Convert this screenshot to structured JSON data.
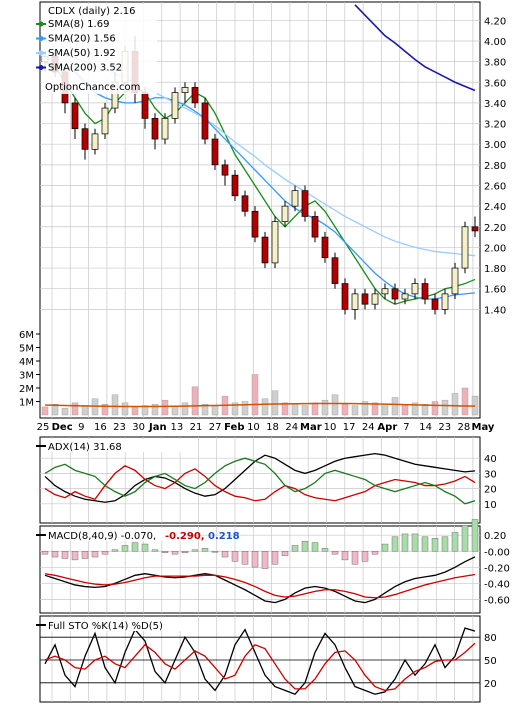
{
  "chart_data": [
    {
      "type": "candlestick",
      "title": "CDLX (daily) 2.16",
      "watermark": "OptionChance.com",
      "ylim": [
        1.2,
        4.3
      ],
      "yticks": [
        "4.20",
        "4.00",
        "3.80",
        "3.60",
        "3.40",
        "3.20",
        "3.00",
        "2.80",
        "2.60",
        "2.40",
        "2.20",
        "2.00",
        "1.80",
        "1.60",
        "1.40"
      ],
      "x_labels": [
        "25",
        "Dec",
        "9",
        "16",
        "23",
        "30",
        "Jan",
        "13",
        "21",
        "27",
        "Feb",
        "10",
        "18",
        "24",
        "Mar",
        "10",
        "17",
        "24",
        "Apr",
        "7",
        "14",
        "23",
        "28",
        "May"
      ],
      "legend": [
        {
          "label": "SMA(8) 1.69",
          "color": "#1a8c1a"
        },
        {
          "label": "SMA(20) 1.56",
          "color": "#3399ff"
        },
        {
          "label": "SMA(50) 1.92",
          "color": "#99ccff"
        },
        {
          "label": "SMA(200) 3.52",
          "color": "#1a1aa8"
        }
      ],
      "series": [
        {
          "name": "SMA(8)",
          "color": "#1a8c1a",
          "values": [
            3.8,
            3.75,
            3.6,
            3.45,
            3.3,
            3.2,
            3.25,
            3.4,
            3.5,
            3.55,
            3.5,
            3.35,
            3.25,
            3.3,
            3.4,
            3.5,
            3.45,
            3.3,
            3.1,
            2.9,
            2.75,
            2.6,
            2.45,
            2.3,
            2.2,
            2.3,
            2.4,
            2.45,
            2.35,
            2.2,
            2.05,
            1.9,
            1.75,
            1.6,
            1.5,
            1.45,
            1.48,
            1.5,
            1.52,
            1.55,
            1.6,
            1.62,
            1.65,
            1.69
          ]
        },
        {
          "name": "SMA(20)",
          "color": "#3399ff",
          "values": [
            3.85,
            3.8,
            3.75,
            3.7,
            3.6,
            3.5,
            3.45,
            3.42,
            3.4,
            3.4,
            3.42,
            3.45,
            3.45,
            3.42,
            3.38,
            3.32,
            3.25,
            3.15,
            3.05,
            2.95,
            2.85,
            2.75,
            2.65,
            2.55,
            2.45,
            2.38,
            2.32,
            2.28,
            2.22,
            2.15,
            2.05,
            1.95,
            1.85,
            1.75,
            1.67,
            1.6,
            1.55,
            1.52,
            1.5,
            1.5,
            1.52,
            1.54,
            1.55,
            1.56
          ]
        },
        {
          "name": "SMA(50)",
          "color": "#99ccff",
          "values": [
            3.9,
            3.88,
            3.86,
            3.84,
            3.8,
            3.76,
            3.72,
            3.68,
            3.64,
            3.6,
            3.55,
            3.5,
            3.45,
            3.4,
            3.35,
            3.3,
            3.25,
            3.18,
            3.1,
            3.02,
            2.95,
            2.88,
            2.8,
            2.73,
            2.66,
            2.6,
            2.54,
            2.48,
            2.42,
            2.36,
            2.3,
            2.25,
            2.2,
            2.15,
            2.1,
            2.06,
            2.03,
            2.0,
            1.98,
            1.96,
            1.95,
            1.94,
            1.93,
            1.92
          ]
        },
        {
          "name": "SMA(200)",
          "color": "#1a1aa8",
          "values": [
            null,
            null,
            null,
            null,
            null,
            null,
            null,
            null,
            null,
            null,
            null,
            null,
            null,
            null,
            null,
            null,
            null,
            null,
            null,
            null,
            null,
            null,
            null,
            null,
            null,
            null,
            null,
            null,
            null,
            null,
            null,
            4.35,
            4.25,
            4.15,
            4.05,
            3.98,
            3.9,
            3.82,
            3.75,
            3.7,
            3.65,
            3.6,
            3.56,
            3.52
          ]
        }
      ],
      "candles": [
        {
          "o": 3.8,
          "h": 3.9,
          "l": 3.7,
          "c": 3.85
        },
        {
          "o": 3.85,
          "h": 3.92,
          "l": 3.65,
          "c": 3.7
        },
        {
          "o": 3.7,
          "h": 3.75,
          "l": 3.3,
          "c": 3.4
        },
        {
          "o": 3.4,
          "h": 3.45,
          "l": 3.05,
          "c": 3.15
        },
        {
          "o": 3.15,
          "h": 3.2,
          "l": 2.85,
          "c": 2.95
        },
        {
          "o": 2.95,
          "h": 3.15,
          "l": 2.9,
          "c": 3.1
        },
        {
          "o": 3.1,
          "h": 3.4,
          "l": 3.05,
          "c": 3.35
        },
        {
          "o": 3.35,
          "h": 3.7,
          "l": 3.3,
          "c": 3.6
        },
        {
          "o": 3.6,
          "h": 3.95,
          "l": 3.5,
          "c": 3.9
        },
        {
          "o": 3.9,
          "h": 4.05,
          "l": 3.4,
          "c": 3.5
        },
        {
          "o": 3.5,
          "h": 3.55,
          "l": 3.15,
          "c": 3.25
        },
        {
          "o": 3.25,
          "h": 3.3,
          "l": 2.95,
          "c": 3.05
        },
        {
          "o": 3.05,
          "h": 3.3,
          "l": 3.0,
          "c": 3.25
        },
        {
          "o": 3.25,
          "h": 3.55,
          "l": 3.2,
          "c": 3.5
        },
        {
          "o": 3.5,
          "h": 3.6,
          "l": 3.4,
          "c": 3.55
        },
        {
          "o": 3.55,
          "h": 3.6,
          "l": 3.35,
          "c": 3.4
        },
        {
          "o": 3.4,
          "h": 3.45,
          "l": 3.0,
          "c": 3.05
        },
        {
          "o": 3.05,
          "h": 3.1,
          "l": 2.75,
          "c": 2.8
        },
        {
          "o": 2.8,
          "h": 2.85,
          "l": 2.6,
          "c": 2.7
        },
        {
          "o": 2.7,
          "h": 2.75,
          "l": 2.45,
          "c": 2.5
        },
        {
          "o": 2.5,
          "h": 2.55,
          "l": 2.3,
          "c": 2.35
        },
        {
          "o": 2.35,
          "h": 2.4,
          "l": 2.05,
          "c": 2.1
        },
        {
          "o": 2.1,
          "h": 2.15,
          "l": 1.8,
          "c": 1.85
        },
        {
          "o": 1.85,
          "h": 2.3,
          "l": 1.8,
          "c": 2.25
        },
        {
          "o": 2.25,
          "h": 2.45,
          "l": 2.2,
          "c": 2.4
        },
        {
          "o": 2.4,
          "h": 2.6,
          "l": 2.35,
          "c": 2.55
        },
        {
          "o": 2.55,
          "h": 2.6,
          "l": 2.25,
          "c": 2.3
        },
        {
          "o": 2.3,
          "h": 2.35,
          "l": 2.05,
          "c": 2.1
        },
        {
          "o": 2.1,
          "h": 2.15,
          "l": 1.85,
          "c": 1.9
        },
        {
          "o": 1.9,
          "h": 1.95,
          "l": 1.6,
          "c": 1.65
        },
        {
          "o": 1.65,
          "h": 1.7,
          "l": 1.35,
          "c": 1.4
        },
        {
          "o": 1.4,
          "h": 1.6,
          "l": 1.3,
          "c": 1.55
        },
        {
          "o": 1.55,
          "h": 1.6,
          "l": 1.4,
          "c": 1.45
        },
        {
          "o": 1.45,
          "h": 1.6,
          "l": 1.4,
          "c": 1.55
        },
        {
          "o": 1.55,
          "h": 1.65,
          "l": 1.5,
          "c": 1.6
        },
        {
          "o": 1.6,
          "h": 1.65,
          "l": 1.45,
          "c": 1.5
        },
        {
          "o": 1.5,
          "h": 1.6,
          "l": 1.45,
          "c": 1.55
        },
        {
          "o": 1.55,
          "h": 1.7,
          "l": 1.5,
          "c": 1.65
        },
        {
          "o": 1.65,
          "h": 1.7,
          "l": 1.45,
          "c": 1.5
        },
        {
          "o": 1.5,
          "h": 1.55,
          "l": 1.35,
          "c": 1.4
        },
        {
          "o": 1.4,
          "h": 1.6,
          "l": 1.35,
          "c": 1.55
        },
        {
          "o": 1.55,
          "h": 1.85,
          "l": 1.5,
          "c": 1.8
        },
        {
          "o": 1.8,
          "h": 2.25,
          "l": 1.75,
          "c": 2.2
        },
        {
          "o": 2.2,
          "h": 2.3,
          "l": 2.1,
          "c": 2.16
        }
      ],
      "volume_ticks": [
        "6M",
        "5M",
        "4M",
        "3M",
        "2M",
        "1M"
      ],
      "volume": [
        0.6,
        0.8,
        0.5,
        0.9,
        0.7,
        1.2,
        0.8,
        1.5,
        0.9,
        0.6,
        0.7,
        0.8,
        1.1,
        0.6,
        0.9,
        2.1,
        0.8,
        0.7,
        1.4,
        0.9,
        1.0,
        3.0,
        1.2,
        1.8,
        0.9,
        0.8,
        0.7,
        0.9,
        1.1,
        1.5,
        0.8,
        0.7,
        1.0,
        0.9,
        0.8,
        1.3,
        0.7,
        0.9,
        0.8,
        1.0,
        1.1,
        1.6,
        2.0,
        1.4
      ]
    },
    {
      "type": "line",
      "title": "ADX(14) 31.68",
      "ylim": [
        0,
        50
      ],
      "yticks": [
        "40",
        "30",
        "20",
        "10"
      ],
      "series": [
        {
          "name": "ADX",
          "color": "#000000",
          "values": [
            28,
            22,
            18,
            15,
            13,
            12,
            11,
            12,
            16,
            22,
            26,
            28,
            27,
            24,
            20,
            17,
            15,
            16,
            20,
            26,
            32,
            38,
            42,
            40,
            36,
            32,
            30,
            32,
            35,
            38,
            40,
            41,
            42,
            43,
            42,
            40,
            38,
            36,
            35,
            34,
            33,
            32,
            31,
            31.68
          ]
        },
        {
          "name": "+DI",
          "color": "#cc0000",
          "values": [
            20,
            16,
            14,
            18,
            15,
            13,
            22,
            30,
            35,
            32,
            26,
            22,
            20,
            24,
            30,
            33,
            28,
            22,
            18,
            15,
            14,
            12,
            13,
            18,
            22,
            20,
            16,
            14,
            13,
            12,
            14,
            16,
            18,
            22,
            24,
            26,
            25,
            24,
            22,
            22,
            23,
            25,
            28,
            24
          ]
        },
        {
          "name": "-DI",
          "color": "#1a7a1a",
          "values": [
            30,
            34,
            36,
            32,
            30,
            28,
            22,
            18,
            15,
            18,
            24,
            28,
            30,
            26,
            22,
            20,
            24,
            30,
            35,
            38,
            40,
            38,
            36,
            30,
            22,
            18,
            20,
            24,
            30,
            32,
            30,
            28,
            26,
            22,
            20,
            18,
            20,
            22,
            24,
            22,
            18,
            15,
            10,
            12
          ]
        }
      ]
    },
    {
      "type": "line",
      "title": "MACD(8,40,9) -0.070, -0.290, 0.218",
      "yticks": [
        "0.20",
        "-0.00",
        "-0.20",
        "-0.40",
        "-0.60"
      ],
      "ylim": [
        -0.72,
        0.24
      ],
      "series": [
        {
          "name": "MACD",
          "color": "#000000",
          "values": [
            -0.3,
            -0.34,
            -0.38,
            -0.42,
            -0.44,
            -0.45,
            -0.44,
            -0.4,
            -0.35,
            -0.3,
            -0.28,
            -0.3,
            -0.32,
            -0.33,
            -0.32,
            -0.3,
            -0.28,
            -0.3,
            -0.36,
            -0.42,
            -0.48,
            -0.55,
            -0.62,
            -0.64,
            -0.6,
            -0.52,
            -0.46,
            -0.44,
            -0.46,
            -0.5,
            -0.56,
            -0.62,
            -0.64,
            -0.6,
            -0.52,
            -0.44,
            -0.38,
            -0.34,
            -0.32,
            -0.3,
            -0.26,
            -0.2,
            -0.13,
            -0.07
          ]
        },
        {
          "name": "Signal",
          "color": "#cc0000",
          "values": [
            -0.28,
            -0.3,
            -0.33,
            -0.36,
            -0.39,
            -0.41,
            -0.42,
            -0.41,
            -0.39,
            -0.36,
            -0.33,
            -0.31,
            -0.31,
            -0.31,
            -0.31,
            -0.31,
            -0.3,
            -0.3,
            -0.32,
            -0.35,
            -0.39,
            -0.44,
            -0.5,
            -0.55,
            -0.57,
            -0.56,
            -0.53,
            -0.5,
            -0.48,
            -0.48,
            -0.5,
            -0.53,
            -0.57,
            -0.58,
            -0.57,
            -0.54,
            -0.5,
            -0.46,
            -0.42,
            -0.39,
            -0.36,
            -0.33,
            -0.31,
            -0.29
          ]
        }
      ]
    },
    {
      "type": "line",
      "title": "Full STO %K(14) %D(5)",
      "ylim": [
        0,
        100
      ],
      "yticks": [
        "80",
        "50",
        "20"
      ],
      "series": [
        {
          "name": "%K",
          "color": "#000000",
          "values": [
            45,
            70,
            30,
            15,
            55,
            85,
            40,
            20,
            60,
            90,
            75,
            35,
            20,
            50,
            80,
            60,
            25,
            10,
            30,
            70,
            90,
            60,
            30,
            15,
            10,
            5,
            20,
            60,
            85,
            70,
            40,
            15,
            10,
            5,
            8,
            25,
            50,
            30,
            45,
            70,
            40,
            55,
            92,
            88
          ]
        },
        {
          "name": "%D",
          "color": "#cc0000",
          "values": [
            50,
            55,
            50,
            40,
            38,
            50,
            55,
            45,
            40,
            55,
            70,
            60,
            45,
            38,
            50,
            62,
            55,
            40,
            25,
            30,
            55,
            70,
            65,
            45,
            25,
            12,
            12,
            25,
            45,
            60,
            62,
            50,
            30,
            15,
            10,
            12,
            25,
            35,
            40,
            48,
            50,
            50,
            60,
            72
          ]
        }
      ]
    }
  ]
}
